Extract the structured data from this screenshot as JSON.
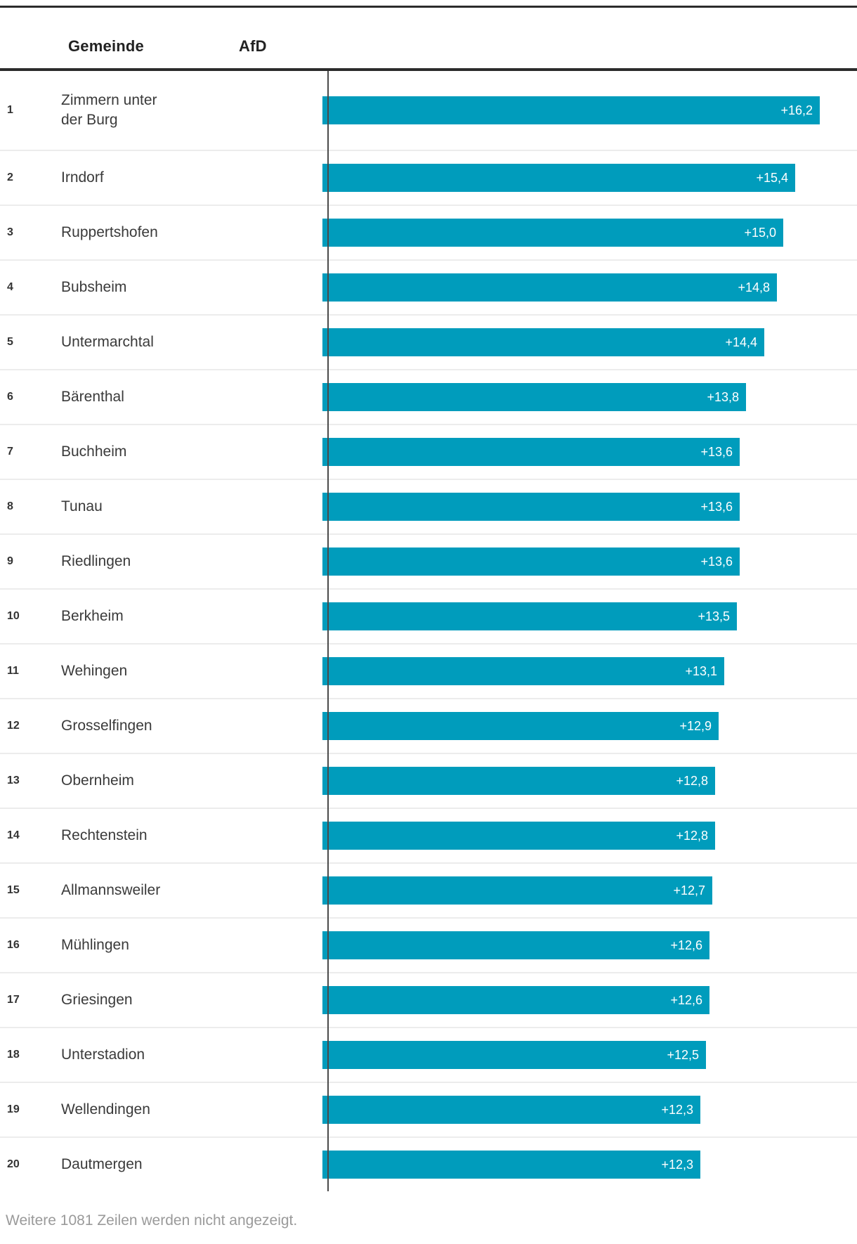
{
  "header": {
    "gemeinde_label": "Gemeinde",
    "afd_label": "AfD"
  },
  "table": {
    "rows": [
      {
        "rank": "1",
        "name": "Zimmern unter der Burg",
        "value": 16.2,
        "value_label": "+16,2"
      },
      {
        "rank": "2",
        "name": "Irndorf",
        "value": 15.4,
        "value_label": "+15,4"
      },
      {
        "rank": "3",
        "name": "Ruppertshofen",
        "value": 15.0,
        "value_label": "+15,0"
      },
      {
        "rank": "4",
        "name": "Bubsheim",
        "value": 14.8,
        "value_label": "+14,8"
      },
      {
        "rank": "5",
        "name": "Untermarchtal",
        "value": 14.4,
        "value_label": "+14,4"
      },
      {
        "rank": "6",
        "name": "Bärenthal",
        "value": 13.8,
        "value_label": "+13,8"
      },
      {
        "rank": "7",
        "name": "Buchheim",
        "value": 13.6,
        "value_label": "+13,6"
      },
      {
        "rank": "8",
        "name": "Tunau",
        "value": 13.6,
        "value_label": "+13,6"
      },
      {
        "rank": "9",
        "name": "Riedlingen",
        "value": 13.6,
        "value_label": "+13,6"
      },
      {
        "rank": "10",
        "name": "Berkheim",
        "value": 13.5,
        "value_label": "+13,5"
      },
      {
        "rank": "11",
        "name": "Wehingen",
        "value": 13.1,
        "value_label": "+13,1"
      },
      {
        "rank": "12",
        "name": "Grosselfingen",
        "value": 12.9,
        "value_label": "+12,9"
      },
      {
        "rank": "13",
        "name": "Obernheim",
        "value": 12.8,
        "value_label": "+12,8"
      },
      {
        "rank": "14",
        "name": "Rechtenstein",
        "value": 12.8,
        "value_label": "+12,8"
      },
      {
        "rank": "15",
        "name": "Allmannsweiler",
        "value": 12.7,
        "value_label": "+12,7"
      },
      {
        "rank": "16",
        "name": "Mühlingen",
        "value": 12.6,
        "value_label": "+12,6"
      },
      {
        "rank": "17",
        "name": "Griesingen",
        "value": 12.6,
        "value_label": "+12,6"
      },
      {
        "rank": "18",
        "name": "Unterstadion",
        "value": 12.5,
        "value_label": "+12,5"
      },
      {
        "rank": "19",
        "name": "Wellendingen",
        "value": 12.3,
        "value_label": "+12,3"
      },
      {
        "rank": "20",
        "name": "Dautmergen",
        "value": 12.3,
        "value_label": "+12,3"
      }
    ],
    "footer": "Weitere 1081 Zeilen werden nicht angezeigt."
  },
  "style": {
    "bar_color": "#009cbc",
    "axis_line_color": "#4a4a4a",
    "separator_color": "#ececec",
    "rule_color": "#2b2b2b",
    "value_text_color": "#ffffff",
    "footer_color": "#9a9a9a"
  },
  "chart_data": {
    "type": "bar",
    "orientation": "horizontal",
    "title": "",
    "category_label": "Gemeinde",
    "series_label": "AfD",
    "categories": [
      "Zimmern unter der Burg",
      "Irndorf",
      "Ruppertshofen",
      "Bubsheim",
      "Untermarchtal",
      "Bärenthal",
      "Buchheim",
      "Tunau",
      "Riedlingen",
      "Berkheim",
      "Wehingen",
      "Grosselfingen",
      "Obernheim",
      "Rechtenstein",
      "Allmannsweiler",
      "Mühlingen",
      "Griesingen",
      "Unterstadion",
      "Wellendingen",
      "Dautmergen"
    ],
    "ranks": [
      1,
      2,
      3,
      4,
      5,
      6,
      7,
      8,
      9,
      10,
      11,
      12,
      13,
      14,
      15,
      16,
      17,
      18,
      19,
      20
    ],
    "values": [
      16.2,
      15.4,
      15.0,
      14.8,
      14.4,
      13.8,
      13.6,
      13.6,
      13.6,
      13.5,
      13.1,
      12.9,
      12.8,
      12.8,
      12.7,
      12.6,
      12.6,
      12.5,
      12.3,
      12.3
    ],
    "value_labels": [
      "+16,2",
      "+15,4",
      "+15,0",
      "+14,8",
      "+14,4",
      "+13,8",
      "+13,6",
      "+13,6",
      "+13,6",
      "+13,5",
      "+13,1",
      "+12,9",
      "+12,8",
      "+12,8",
      "+12,7",
      "+12,6",
      "+12,6",
      "+12,5",
      "+12,3",
      "+12,3"
    ],
    "xlim": [
      0,
      17.2
    ],
    "grid": false,
    "legend_position": "none",
    "bar_color": "#009cbc",
    "footer_note": "Weitere 1081 Zeilen werden nicht angezeigt."
  }
}
